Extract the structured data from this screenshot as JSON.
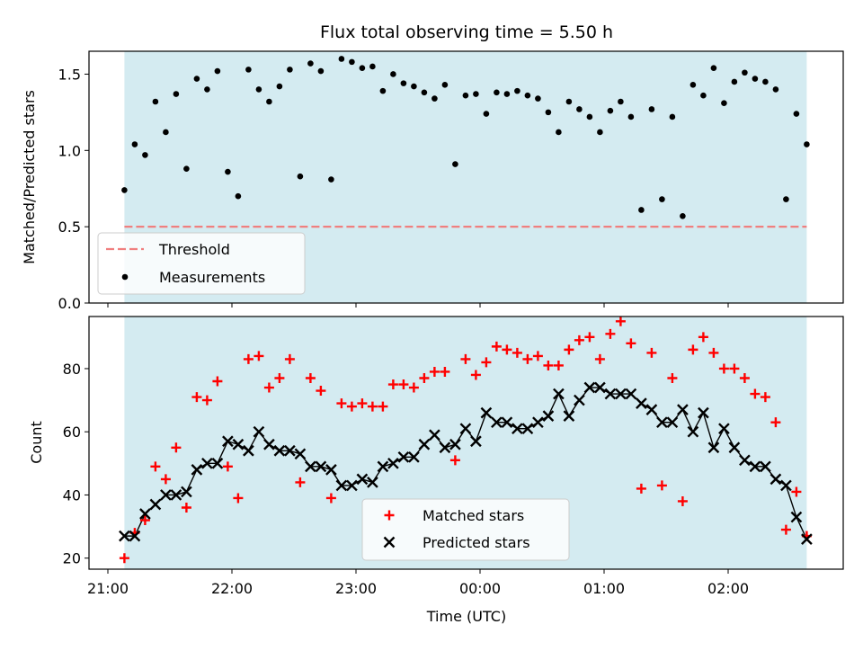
{
  "chart_data": [
    {
      "type": "scatter",
      "title": "Flux total observing time = 5.50 h",
      "xlabel": "",
      "ylabel": "Matched/Predicted stars",
      "ylim": [
        0,
        1.65
      ],
      "y_ticks": [
        "0.0",
        "0.5",
        "1.0",
        "1.5"
      ],
      "y_tick_values": [
        0,
        0.5,
        1.0,
        1.5
      ],
      "shaded_region": {
        "start": "21:08",
        "end": "02:38",
        "color": "#d4ebf1"
      },
      "threshold": {
        "name": "Threshold",
        "value": 0.5,
        "color": "#f07f7f"
      },
      "legend": {
        "position": "lower-left",
        "entries": [
          "Threshold",
          "Measurements"
        ]
      },
      "series": [
        {
          "name": "Measurements",
          "marker": "dot",
          "color": "#000000",
          "x": [
            "21:08",
            "21:13",
            "21:18",
            "21:23",
            "21:28",
            "21:33",
            "21:38",
            "21:43",
            "21:48",
            "21:53",
            "21:58",
            "22:03",
            "22:08",
            "22:13",
            "22:18",
            "22:23",
            "22:28",
            "22:33",
            "22:38",
            "22:43",
            "22:48",
            "22:53",
            "22:58",
            "23:03",
            "23:08",
            "23:13",
            "23:18",
            "23:23",
            "23:28",
            "23:33",
            "23:38",
            "23:43",
            "23:48",
            "23:53",
            "23:58",
            "00:03",
            "00:08",
            "00:13",
            "00:18",
            "00:23",
            "00:28",
            "00:33",
            "00:38",
            "00:43",
            "00:48",
            "00:53",
            "00:58",
            "01:03",
            "01:08",
            "01:13",
            "01:18",
            "01:23",
            "01:28",
            "01:33",
            "01:38",
            "01:43",
            "01:48",
            "01:53",
            "01:58",
            "02:03",
            "02:08",
            "02:13",
            "02:18",
            "02:23",
            "02:28",
            "02:33",
            "02:38"
          ],
          "y": [
            0.74,
            1.04,
            0.97,
            1.32,
            1.12,
            1.37,
            0.88,
            1.47,
            1.4,
            1.52,
            0.86,
            0.7,
            1.53,
            1.4,
            1.32,
            1.42,
            1.53,
            0.83,
            1.57,
            1.52,
            0.81,
            1.6,
            1.58,
            1.54,
            1.55,
            1.39,
            1.5,
            1.44,
            1.42,
            1.38,
            1.34,
            1.43,
            0.91,
            1.36,
            1.37,
            1.24,
            1.38,
            1.37,
            1.39,
            1.36,
            1.34,
            1.25,
            1.12,
            1.32,
            1.27,
            1.22,
            1.12,
            1.26,
            1.32,
            1.22,
            0.61,
            1.27,
            0.68,
            1.22,
            0.57,
            1.43,
            1.36,
            1.54,
            1.31,
            1.45,
            1.51,
            1.47,
            1.45,
            1.4,
            0.68,
            1.24,
            1.04
          ]
        }
      ]
    },
    {
      "type": "scatter",
      "title": "",
      "xlabel": "Time (UTC)",
      "ylabel": "Count",
      "ylim": [
        16.5,
        96.5
      ],
      "y_ticks": [
        "20",
        "40",
        "60",
        "80"
      ],
      "y_tick_values": [
        20,
        40,
        60,
        80
      ],
      "x_ticks": [
        "21:00",
        "22:00",
        "23:00",
        "00:00",
        "01:00",
        "02:00"
      ],
      "shaded_region": {
        "start": "21:08",
        "end": "02:38",
        "color": "#d4ebf1"
      },
      "legend": {
        "position": "lower-center",
        "entries": [
          "Matched stars",
          "Predicted stars"
        ]
      },
      "series": [
        {
          "name": "Matched stars",
          "marker": "plus",
          "color": "#ff0000",
          "y": [
            20,
            28,
            32,
            49,
            45,
            55,
            36,
            71,
            70,
            76,
            49,
            39,
            83,
            84,
            74,
            77,
            83,
            44,
            77,
            73,
            39,
            69,
            68,
            69,
            68,
            68,
            75,
            75,
            74,
            77,
            79,
            79,
            51,
            83,
            78,
            82,
            87,
            86,
            85,
            83,
            84,
            81,
            81,
            86,
            89,
            90,
            83,
            91,
            95,
            88,
            42,
            85,
            43,
            77,
            38,
            86,
            90,
            85,
            80,
            80,
            77,
            72,
            71,
            63,
            29,
            41,
            27
          ]
        },
        {
          "name": "Predicted stars",
          "marker": "x",
          "color": "#000000",
          "y": [
            27,
            27,
            34,
            37,
            40,
            40,
            41,
            48,
            50,
            50,
            57,
            56,
            54,
            60,
            56,
            54,
            54,
            53,
            49,
            49,
            48,
            43,
            43,
            45,
            44,
            49,
            50,
            52,
            52,
            56,
            59,
            55,
            56,
            61,
            57,
            66,
            63,
            63,
            61,
            61,
            63,
            65,
            72,
            65,
            70,
            74,
            74,
            72,
            72,
            72,
            69,
            67,
            63,
            63,
            67,
            60,
            66,
            55,
            61,
            55,
            51,
            49,
            49,
            45,
            43,
            33,
            26
          ]
        }
      ]
    }
  ]
}
